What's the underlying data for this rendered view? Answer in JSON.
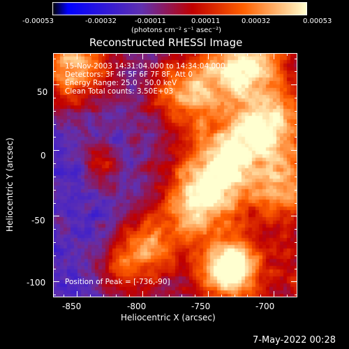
{
  "colorbar": {
    "tick_labels": [
      "-0.00053",
      "-0.00032",
      "-0.00011",
      "0.00011",
      "0.00032",
      "0.00053"
    ],
    "units": "(photons cm⁻² s⁻¹ asec⁻²)",
    "range": [
      -0.00053,
      0.00053
    ],
    "colormap": "rainbow/blue-purple-red-yellow-white"
  },
  "plot": {
    "title": "Reconstructed RHESSI Image",
    "annotations": [
      "15-Nov-2003 14:31:04.000 to 14:34:04.000",
      "Detectors: 3F 4F 5F 6F 7F 8F, Att 0",
      "Energy Range: 25.0 - 50.0 keV",
      "Clean     Total counts: 3.50E+03"
    ],
    "peak_label": "Position of Peak = [-736,-90]",
    "xlabel": "Heliocentric X (arcsec)",
    "ylabel": "Heliocentric Y (arcsec)",
    "x_ticks": [
      "-850",
      "-800",
      "-750",
      "-700"
    ],
    "y_ticks": [
      "50",
      "0",
      "-50",
      "-100"
    ]
  },
  "timestamp": "7-May-2022 00:28",
  "chart_data": {
    "type": "heatmap",
    "title": "Reconstructed RHESSI Image",
    "xlabel": "Heliocentric X (arcsec)",
    "ylabel": "Heliocentric Y (arcsec)",
    "xlim": [
      -868,
      -682
    ],
    "ylim": [
      -112,
      74
    ],
    "x_tick_values": [
      -850,
      -800,
      -750,
      -700
    ],
    "y_tick_values": [
      50,
      0,
      -50,
      -100
    ],
    "value_range": [
      -0.00053,
      0.00053
    ],
    "peak_position": [
      -736,
      -90
    ],
    "colors": {
      "low": "#0000ff",
      "mid_low": "#6030b0",
      "mid": "#c00000",
      "mid_high": "#ff6000",
      "high": "#ffffd0"
    }
  }
}
